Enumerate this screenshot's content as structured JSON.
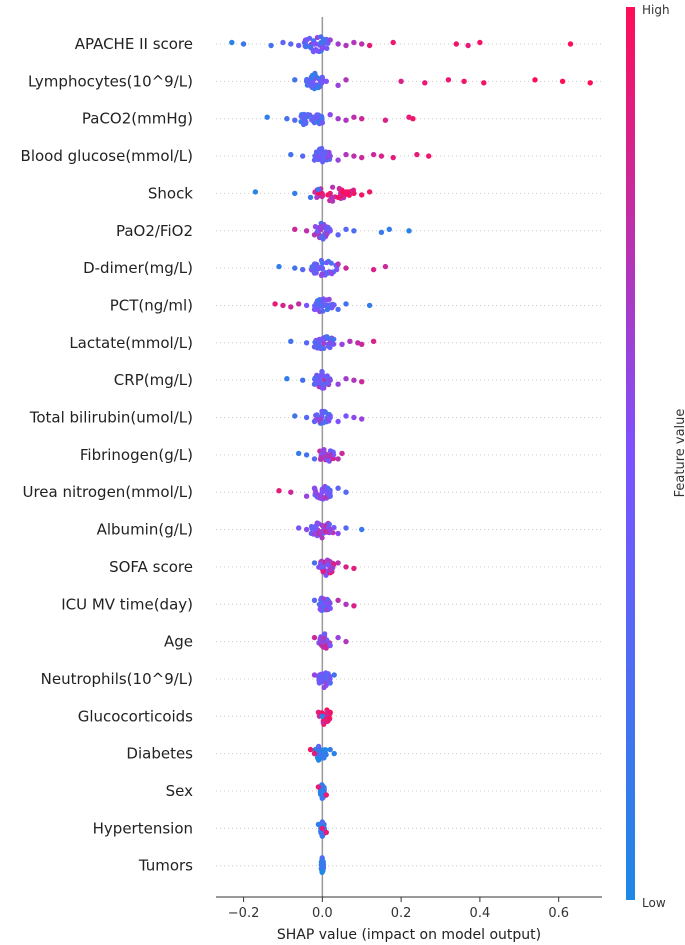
{
  "chart_data": {
    "type": "scatter",
    "subtype": "shap-beeswarm",
    "title": "",
    "xlabel": "SHAP value (impact on model output)",
    "ylabel": "",
    "xlim": [
      -0.27,
      0.71
    ],
    "xticks": [
      -0.2,
      0.0,
      0.2,
      0.4,
      0.6
    ],
    "xtick_labels": [
      "−0.2",
      "0.0",
      "0.2",
      "0.4",
      "0.6"
    ],
    "colorbar": {
      "label": "Feature value",
      "high_label": "High",
      "low_label": "Low",
      "low_color": "#1e88e5",
      "high_color": "#ff0d57"
    },
    "colors": {
      "axis": "#333333",
      "grid": "#cccccc",
      "zero_line": "#999999"
    },
    "features": [
      {
        "name": "APACHE II score",
        "points": [
          [
            -0.23,
            0.05
          ],
          [
            -0.2,
            0.15
          ],
          [
            -0.13,
            0.2
          ],
          [
            -0.1,
            0.35
          ],
          [
            -0.08,
            0.3
          ],
          [
            -0.06,
            0.4
          ],
          [
            -0.04,
            0.45
          ],
          [
            -0.02,
            0.5
          ],
          [
            0.0,
            0.55
          ],
          [
            0.02,
            0.6
          ],
          [
            0.04,
            0.65
          ],
          [
            0.06,
            0.7
          ],
          [
            0.08,
            0.7
          ],
          [
            0.1,
            0.75
          ],
          [
            0.12,
            0.9
          ],
          [
            0.18,
            0.92
          ],
          [
            0.34,
            0.95
          ],
          [
            0.37,
            0.9
          ],
          [
            0.4,
            0.95
          ],
          [
            0.63,
            1.0
          ]
        ],
        "core": [
          -0.05,
          0.02,
          0.4
        ]
      },
      {
        "name": "Lymphocytes(10^9/L)",
        "points": [
          [
            -0.07,
            0.2
          ],
          [
            -0.04,
            0.3
          ],
          [
            -0.02,
            0.35
          ],
          [
            0.0,
            0.4
          ],
          [
            0.01,
            0.5
          ],
          [
            0.04,
            0.6
          ],
          [
            0.06,
            0.7
          ],
          [
            0.2,
            0.85
          ],
          [
            0.26,
            0.9
          ],
          [
            0.32,
            0.92
          ],
          [
            0.36,
            0.95
          ],
          [
            0.41,
            0.95
          ],
          [
            0.54,
            1.0
          ],
          [
            0.61,
            1.0
          ],
          [
            0.68,
            1.0
          ]
        ],
        "core": [
          -0.04,
          0.0,
          0.3
        ]
      },
      {
        "name": "PaCO2(mmHg)",
        "points": [
          [
            -0.14,
            0.1
          ],
          [
            -0.09,
            0.2
          ],
          [
            -0.07,
            0.3
          ],
          [
            -0.05,
            0.35
          ],
          [
            -0.02,
            0.4
          ],
          [
            0.0,
            0.45
          ],
          [
            0.02,
            0.55
          ],
          [
            0.04,
            0.65
          ],
          [
            0.06,
            0.7
          ],
          [
            0.08,
            0.75
          ],
          [
            0.1,
            0.8
          ],
          [
            0.16,
            0.85
          ],
          [
            0.22,
            0.9
          ],
          [
            0.23,
            0.95
          ]
        ],
        "core": [
          -0.06,
          0.0,
          0.3
        ]
      },
      {
        "name": "Blood glucose(mmol/L)",
        "points": [
          [
            -0.08,
            0.2
          ],
          [
            -0.05,
            0.3
          ],
          [
            -0.02,
            0.35
          ],
          [
            0.0,
            0.4
          ],
          [
            0.02,
            0.55
          ],
          [
            0.04,
            0.6
          ],
          [
            0.06,
            0.7
          ],
          [
            0.08,
            0.75
          ],
          [
            0.1,
            0.8
          ],
          [
            0.13,
            0.8
          ],
          [
            0.15,
            0.85
          ],
          [
            0.18,
            0.9
          ],
          [
            0.24,
            0.9
          ],
          [
            0.27,
            0.95
          ]
        ],
        "core": [
          -0.02,
          0.02,
          0.4
        ]
      },
      {
        "name": "Shock",
        "points": [
          [
            -0.17,
            0.05
          ],
          [
            -0.07,
            0.1
          ],
          [
            -0.03,
            0.15
          ],
          [
            -0.01,
            0.2
          ],
          [
            0.02,
            0.9
          ],
          [
            0.04,
            0.95
          ],
          [
            0.06,
            0.95
          ],
          [
            0.08,
            0.95
          ],
          [
            0.1,
            0.95
          ],
          [
            0.12,
            0.95
          ]
        ],
        "core": [
          -0.02,
          0.08,
          0.9
        ]
      },
      {
        "name": "PaO2/FiO2",
        "points": [
          [
            -0.07,
            0.8
          ],
          [
            -0.04,
            0.75
          ],
          [
            -0.02,
            0.7
          ],
          [
            0.0,
            0.6
          ],
          [
            0.02,
            0.5
          ],
          [
            0.04,
            0.35
          ],
          [
            0.06,
            0.3
          ],
          [
            0.08,
            0.25
          ],
          [
            0.15,
            0.15
          ],
          [
            0.17,
            0.1
          ],
          [
            0.22,
            0.05
          ]
        ],
        "core": [
          -0.02,
          0.02,
          0.5
        ]
      },
      {
        "name": "D-dimer(mg/L)",
        "points": [
          [
            -0.11,
            0.1
          ],
          [
            -0.07,
            0.2
          ],
          [
            -0.05,
            0.3
          ],
          [
            -0.02,
            0.35
          ],
          [
            0.0,
            0.4
          ],
          [
            0.02,
            0.55
          ],
          [
            0.04,
            0.7
          ],
          [
            0.06,
            0.8
          ],
          [
            0.13,
            0.85
          ],
          [
            0.16,
            0.8
          ]
        ],
        "core": [
          -0.03,
          0.04,
          0.4
        ]
      },
      {
        "name": "PCT(ng/ml)",
        "points": [
          [
            -0.12,
            0.9
          ],
          [
            -0.1,
            0.85
          ],
          [
            -0.08,
            0.8
          ],
          [
            -0.06,
            0.75
          ],
          [
            -0.04,
            0.5
          ],
          [
            -0.02,
            0.5
          ],
          [
            0.0,
            0.4
          ],
          [
            0.02,
            0.3
          ],
          [
            0.04,
            0.25
          ],
          [
            0.06,
            0.2
          ],
          [
            0.12,
            0.1
          ]
        ],
        "core": [
          -0.02,
          0.03,
          0.4
        ]
      },
      {
        "name": "Lactate(mmol/L)",
        "points": [
          [
            -0.08,
            0.2
          ],
          [
            -0.04,
            0.3
          ],
          [
            -0.02,
            0.35
          ],
          [
            0.0,
            0.45
          ],
          [
            0.02,
            0.55
          ],
          [
            0.05,
            0.6
          ],
          [
            0.07,
            0.7
          ],
          [
            0.09,
            0.75
          ],
          [
            0.1,
            0.8
          ],
          [
            0.13,
            0.85
          ]
        ],
        "core": [
          -0.02,
          0.03,
          0.4
        ]
      },
      {
        "name": "CRP(mg/L)",
        "points": [
          [
            -0.09,
            0.1
          ],
          [
            -0.05,
            0.2
          ],
          [
            -0.02,
            0.3
          ],
          [
            0.0,
            0.5
          ],
          [
            0.02,
            0.55
          ],
          [
            0.04,
            0.6
          ],
          [
            0.06,
            0.65
          ],
          [
            0.08,
            0.7
          ],
          [
            0.1,
            0.8
          ]
        ],
        "core": [
          -0.02,
          0.02,
          0.5
        ]
      },
      {
        "name": "Total bilirubin(umol/L)",
        "points": [
          [
            -0.07,
            0.2
          ],
          [
            -0.04,
            0.3
          ],
          [
            -0.02,
            0.35
          ],
          [
            0.0,
            0.4
          ],
          [
            0.02,
            0.45
          ],
          [
            0.04,
            0.5
          ],
          [
            0.06,
            0.5
          ],
          [
            0.08,
            0.55
          ],
          [
            0.1,
            0.6
          ]
        ],
        "core": [
          -0.02,
          0.02,
          0.4
        ]
      },
      {
        "name": "Fibrinogen(g/L)",
        "points": [
          [
            -0.06,
            0.1
          ],
          [
            -0.04,
            0.2
          ],
          [
            -0.02,
            0.3
          ],
          [
            0.0,
            0.6
          ],
          [
            0.02,
            0.7
          ],
          [
            0.04,
            0.75
          ],
          [
            0.05,
            0.8
          ]
        ],
        "core": [
          -0.01,
          0.03,
          0.6
        ]
      },
      {
        "name": "Urea nitrogen(mmol/L)",
        "points": [
          [
            -0.11,
            0.9
          ],
          [
            -0.08,
            0.8
          ],
          [
            -0.04,
            0.6
          ],
          [
            -0.02,
            0.55
          ],
          [
            0.0,
            0.5
          ],
          [
            0.02,
            0.4
          ],
          [
            0.04,
            0.35
          ],
          [
            0.06,
            0.3
          ]
        ],
        "core": [
          -0.02,
          0.02,
          0.5
        ]
      },
      {
        "name": "Albumin(g/L)",
        "points": [
          [
            -0.06,
            0.5
          ],
          [
            -0.04,
            0.55
          ],
          [
            -0.02,
            0.6
          ],
          [
            0.0,
            0.65
          ],
          [
            0.02,
            0.6
          ],
          [
            0.04,
            0.55
          ],
          [
            0.06,
            0.3
          ],
          [
            0.1,
            0.15
          ]
        ],
        "core": [
          -0.03,
          0.03,
          0.6
        ]
      },
      {
        "name": "SOFA score",
        "points": [
          [
            -0.02,
            0.2
          ],
          [
            0.0,
            0.4
          ],
          [
            0.02,
            0.7
          ],
          [
            0.04,
            0.75
          ],
          [
            0.06,
            0.85
          ],
          [
            0.08,
            0.9
          ]
        ],
        "core": [
          -0.01,
          0.03,
          0.7
        ]
      },
      {
        "name": "ICU MV time(day)",
        "points": [
          [
            -0.02,
            0.3
          ],
          [
            0.0,
            0.4
          ],
          [
            0.02,
            0.5
          ],
          [
            0.04,
            0.75
          ],
          [
            0.06,
            0.7
          ],
          [
            0.08,
            0.85
          ]
        ],
        "core": [
          -0.01,
          0.02,
          0.4
        ]
      },
      {
        "name": "Age",
        "points": [
          [
            -0.02,
            0.8
          ],
          [
            0.0,
            0.6
          ],
          [
            0.02,
            0.5
          ],
          [
            0.04,
            0.6
          ],
          [
            0.06,
            0.7
          ]
        ],
        "core": [
          -0.01,
          0.02,
          0.6
        ]
      },
      {
        "name": "Neutrophils(10^9/L)",
        "points": [
          [
            -0.02,
            0.6
          ],
          [
            0.0,
            0.4
          ],
          [
            0.02,
            0.3
          ],
          [
            0.03,
            0.2
          ]
        ],
        "core": [
          -0.01,
          0.02,
          0.4
        ]
      },
      {
        "name": "Glucocorticoids",
        "points": [
          [
            -0.01,
            0.9
          ],
          [
            0.0,
            0.1
          ],
          [
            0.01,
            0.9
          ],
          [
            0.02,
            0.95
          ]
        ],
        "core": [
          -0.01,
          0.02,
          0.9
        ]
      },
      {
        "name": "Diabetes",
        "points": [
          [
            -0.03,
            0.95
          ],
          [
            -0.02,
            0.9
          ],
          [
            0.0,
            0.1
          ],
          [
            0.02,
            0.1
          ],
          [
            0.03,
            0.05
          ]
        ],
        "core": [
          -0.02,
          0.01,
          0.1
        ]
      },
      {
        "name": "Sex",
        "points": [
          [
            -0.01,
            0.9
          ],
          [
            0.0,
            0.1
          ],
          [
            0.01,
            0.9
          ]
        ],
        "core": [
          -0.005,
          0.005,
          0.1
        ]
      },
      {
        "name": "Hypertension",
        "points": [
          [
            -0.01,
            0.1
          ],
          [
            0.0,
            0.9
          ],
          [
            0.01,
            0.9
          ]
        ],
        "core": [
          -0.005,
          0.005,
          0.1
        ]
      },
      {
        "name": "Tumors",
        "points": [
          [
            0.0,
            0.1
          ],
          [
            0.0,
            0.15
          ]
        ],
        "core": [
          -0.003,
          0.003,
          0.1
        ]
      }
    ]
  }
}
